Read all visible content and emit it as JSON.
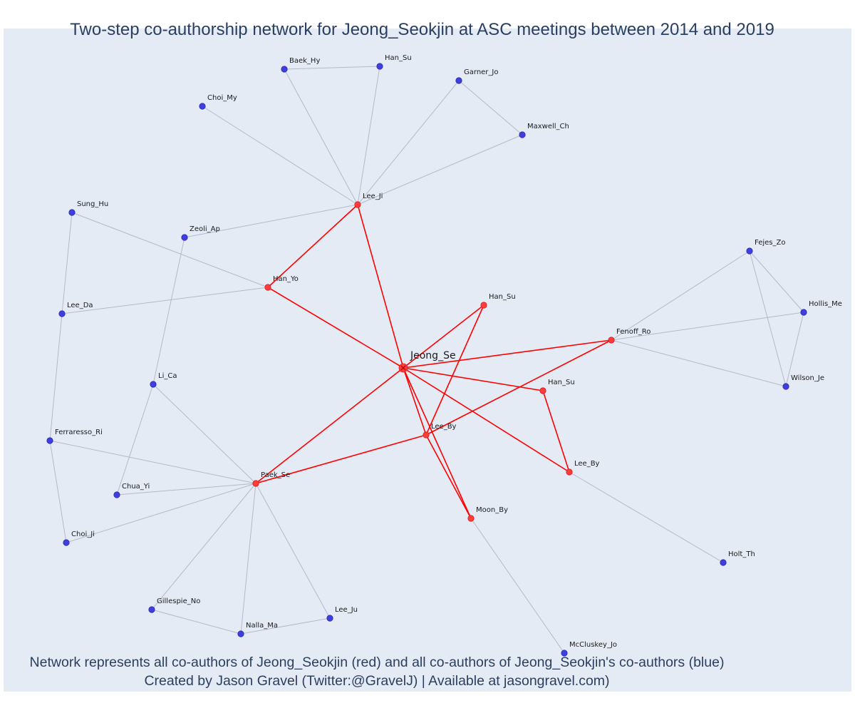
{
  "title": "Two-step co-authorship network for Jeong_Seokjin at ASC meetings between 2014 and 2019",
  "caption": {
    "line1": "Network represents all co-authors of Jeong_Seokjin (red) and all co-authors of Jeong_Seokjin's co-authors (blue)",
    "line2": "Created by Jason Gravel (Twitter:@GravelJ) | Available at jasongravel.com)"
  },
  "colors": {
    "background": "#e5ebf5",
    "direct_edge": "#ff0000",
    "indirect_edge": "#b4b9c8",
    "red_node": "#ff3b3b",
    "blue_node": "#3f3fe0",
    "text": "#2a3f5f"
  },
  "nodes": [
    {
      "id": "jeong",
      "label": "Jeong_Se",
      "type": "center"
    },
    {
      "id": "lee_ji",
      "label": "Lee_Ji",
      "type": "red"
    },
    {
      "id": "han_yo",
      "label": "Han_Yo",
      "type": "red"
    },
    {
      "id": "han_su_a",
      "label": "Han_Su",
      "type": "red"
    },
    {
      "id": "fenoff",
      "label": "Fenoff_Ro",
      "type": "red"
    },
    {
      "id": "han_su_b",
      "label": "Han_Su",
      "type": "red"
    },
    {
      "id": "lee_by_a",
      "label": "Lee_By",
      "type": "red"
    },
    {
      "id": "lee_by_b",
      "label": "Lee_By",
      "type": "red"
    },
    {
      "id": "paek",
      "label": "Paek_Se",
      "type": "red"
    },
    {
      "id": "moon",
      "label": "Moon_By",
      "type": "red"
    },
    {
      "id": "baek",
      "label": "Baek_Hy",
      "type": "blue"
    },
    {
      "id": "han_su_top",
      "label": "Han_Su",
      "type": "blue"
    },
    {
      "id": "choi_my",
      "label": "Choi_My",
      "type": "blue"
    },
    {
      "id": "garner",
      "label": "Garner_Jo",
      "type": "blue"
    },
    {
      "id": "maxwell",
      "label": "Maxwell_Ch",
      "type": "blue"
    },
    {
      "id": "zeoli",
      "label": "Zeoli_Ap",
      "type": "blue"
    },
    {
      "id": "sung",
      "label": "Sung_Hu",
      "type": "blue"
    },
    {
      "id": "lee_da",
      "label": "Lee_Da",
      "type": "blue"
    },
    {
      "id": "li_ca",
      "label": "Li_Ca",
      "type": "blue"
    },
    {
      "id": "ferraresso",
      "label": "Ferraresso_Ri",
      "type": "blue"
    },
    {
      "id": "chua",
      "label": "Chua_Yi",
      "type": "blue"
    },
    {
      "id": "choi_ji",
      "label": "Choi_Ji",
      "type": "blue"
    },
    {
      "id": "gillespie",
      "label": "Gillespie_No",
      "type": "blue"
    },
    {
      "id": "nalla",
      "label": "Nalla_Ma",
      "type": "blue"
    },
    {
      "id": "lee_ju",
      "label": "Lee_Ju",
      "type": "blue"
    },
    {
      "id": "fejes",
      "label": "Fejes_Zo",
      "type": "blue"
    },
    {
      "id": "hollis",
      "label": "Hollis_Me",
      "type": "blue"
    },
    {
      "id": "wilson",
      "label": "Wilson_Je",
      "type": "blue"
    },
    {
      "id": "holt",
      "label": "Holt_Th",
      "type": "blue"
    },
    {
      "id": "mccluskey",
      "label": "McCluskey_Jo",
      "type": "blue"
    }
  ],
  "edges": [
    [
      "jeong",
      "lee_ji",
      "direct"
    ],
    [
      "jeong",
      "han_yo",
      "direct"
    ],
    [
      "jeong",
      "han_su_a",
      "direct"
    ],
    [
      "jeong",
      "fenoff",
      "direct"
    ],
    [
      "jeong",
      "han_su_b",
      "direct"
    ],
    [
      "jeong",
      "lee_by_a",
      "direct"
    ],
    [
      "jeong",
      "lee_by_b",
      "direct"
    ],
    [
      "jeong",
      "paek",
      "direct"
    ],
    [
      "jeong",
      "moon",
      "direct"
    ],
    [
      "lee_ji",
      "han_yo",
      "direct"
    ],
    [
      "han_su_a",
      "lee_by_a",
      "direct"
    ],
    [
      "fenoff",
      "lee_by_a",
      "direct"
    ],
    [
      "paek",
      "lee_by_a",
      "direct"
    ],
    [
      "lee_by_a",
      "moon",
      "direct"
    ],
    [
      "han_su_b",
      "lee_by_b",
      "direct"
    ],
    [
      "lee_ji",
      "baek",
      "indirect"
    ],
    [
      "lee_ji",
      "han_su_top",
      "indirect"
    ],
    [
      "lee_ji",
      "choi_my",
      "indirect"
    ],
    [
      "lee_ji",
      "garner",
      "indirect"
    ],
    [
      "lee_ji",
      "maxwell",
      "indirect"
    ],
    [
      "lee_ji",
      "zeoli",
      "indirect"
    ],
    [
      "baek",
      "han_su_top",
      "indirect"
    ],
    [
      "garner",
      "maxwell",
      "indirect"
    ],
    [
      "han_yo",
      "sung",
      "indirect"
    ],
    [
      "han_yo",
      "lee_da",
      "indirect"
    ],
    [
      "sung",
      "lee_da",
      "indirect"
    ],
    [
      "lee_da",
      "ferraresso",
      "indirect"
    ],
    [
      "ferraresso",
      "choi_ji",
      "indirect"
    ],
    [
      "zeoli",
      "li_ca",
      "indirect"
    ],
    [
      "li_ca",
      "chua",
      "indirect"
    ],
    [
      "li_ca",
      "paek",
      "indirect"
    ],
    [
      "paek",
      "ferraresso",
      "indirect"
    ],
    [
      "paek",
      "chua",
      "indirect"
    ],
    [
      "paek",
      "choi_ji",
      "indirect"
    ],
    [
      "paek",
      "gillespie",
      "indirect"
    ],
    [
      "paek",
      "nalla",
      "indirect"
    ],
    [
      "paek",
      "lee_ju",
      "indirect"
    ],
    [
      "gillespie",
      "nalla",
      "indirect"
    ],
    [
      "nalla",
      "lee_ju",
      "indirect"
    ],
    [
      "fenoff",
      "fejes",
      "indirect"
    ],
    [
      "fenoff",
      "hollis",
      "indirect"
    ],
    [
      "fenoff",
      "wilson",
      "indirect"
    ],
    [
      "fejes",
      "hollis",
      "indirect"
    ],
    [
      "fejes",
      "wilson",
      "indirect"
    ],
    [
      "hollis",
      "wilson",
      "indirect"
    ],
    [
      "lee_by_b",
      "holt",
      "indirect"
    ],
    [
      "moon",
      "mccluskey",
      "indirect"
    ]
  ]
}
